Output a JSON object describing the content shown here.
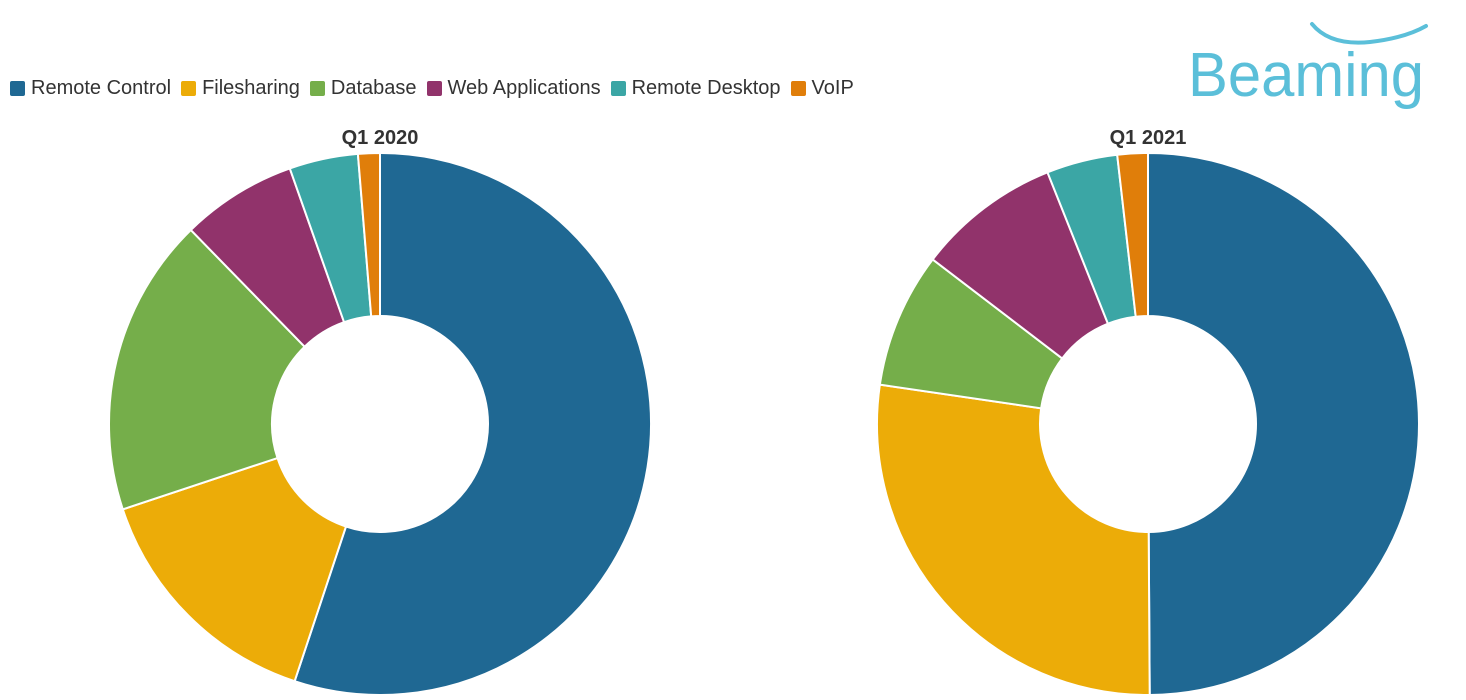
{
  "legend": {
    "items": [
      {
        "label": "Remote Control",
        "color": "#1f6893"
      },
      {
        "label": "Filesharing",
        "color": "#ecac08"
      },
      {
        "label": "Database",
        "color": "#75ae4a"
      },
      {
        "label": "Web Applications",
        "color": "#91336b"
      },
      {
        "label": "Remote Desktop",
        "color": "#3ba6a5"
      },
      {
        "label": "VoIP",
        "color": "#e07e0a"
      }
    ]
  },
  "logo": {
    "text": "Beaming",
    "color": "#5bbfd9"
  },
  "chart_data": [
    {
      "type": "pie",
      "title": "Q1 2020",
      "categories": [
        "Remote Control",
        "Filesharing",
        "Database",
        "Web Applications",
        "Remote Desktop",
        "VoIP"
      ],
      "values": [
        55.1,
        14.8,
        17.8,
        6.9,
        4.1,
        1.3
      ],
      "unit": "%",
      "donut": true,
      "legend_position": "top-left"
    },
    {
      "type": "pie",
      "title": "Q1 2021",
      "categories": [
        "Remote Control",
        "Filesharing",
        "Database",
        "Web Applications",
        "Remote Desktop",
        "VoIP"
      ],
      "values": [
        49.5,
        27.2,
        8.0,
        8.5,
        4.2,
        1.8
      ],
      "unit": "%",
      "donut": true,
      "legend_position": "top-left"
    }
  ]
}
